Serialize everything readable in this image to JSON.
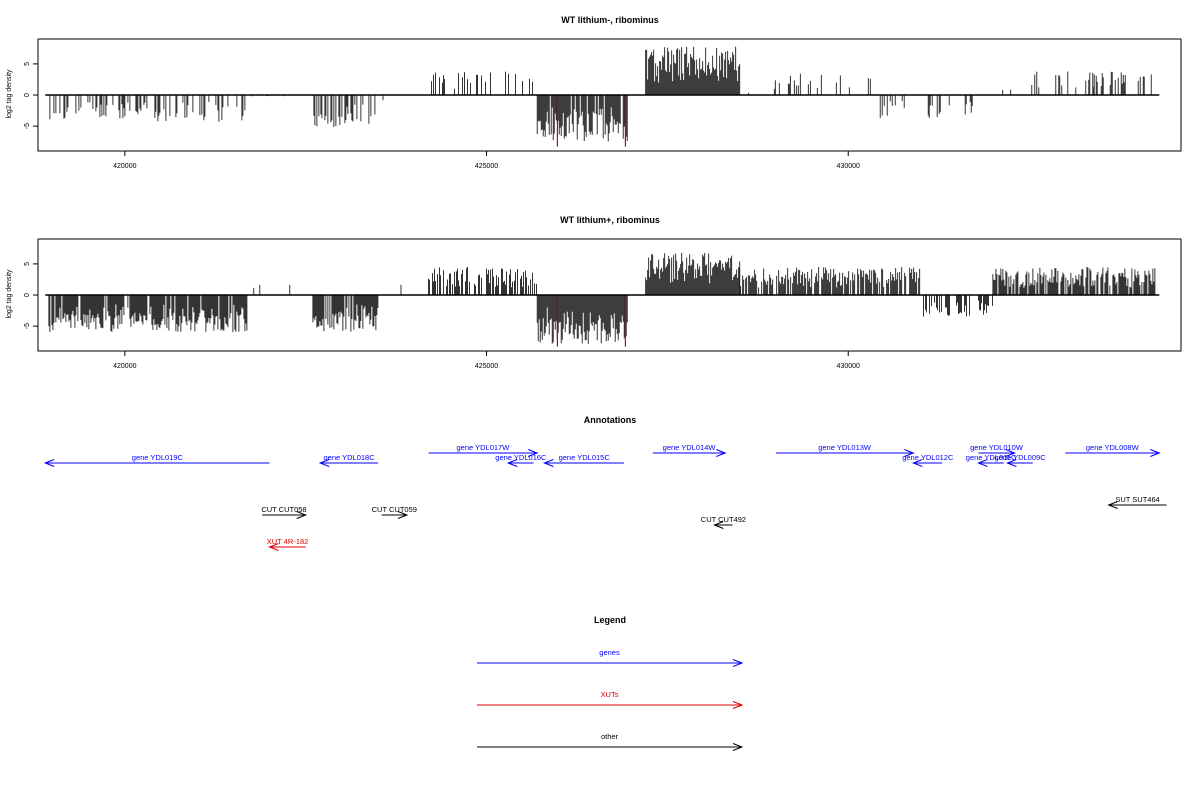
{
  "chart_data": [
    {
      "type": "bar",
      "title": "WT lithium-, ribominus",
      "ylabel": "log2 tag density",
      "xlim": [
        418800,
        434600
      ],
      "ylim": [
        -9,
        9
      ],
      "x_ticks": [
        420000,
        425000,
        430000
      ],
      "y_ticks": [
        -5,
        0,
        5
      ],
      "x_tick_labels": [
        "420000",
        "425000",
        "430000"
      ],
      "y_tick_labels": [
        "-5",
        "0",
        "5"
      ],
      "baseline_range": [
        418900,
        434300
      ],
      "highlight_color": "#cc0000",
      "highlight_bars": [
        {
          "x": 425980,
          "y": -8.3
        },
        {
          "x": 426920,
          "y": -8.3
        }
      ],
      "density_regions": [
        {
          "start": 418950,
          "end": 421700,
          "sign": -1,
          "max": 4.3,
          "density": 0.35
        },
        {
          "start": 421700,
          "end": 422600,
          "sign": -1,
          "max": 0.3,
          "density": 0.03
        },
        {
          "start": 422600,
          "end": 423500,
          "sign": -1,
          "max": 5.2,
          "density": 0.45
        },
        {
          "start": 423500,
          "end": 424200,
          "sign": -1,
          "max": 1.5,
          "density": 0.03
        },
        {
          "start": 424200,
          "end": 425700,
          "sign": 1,
          "max": 3.8,
          "density": 0.2
        },
        {
          "start": 425700,
          "end": 426950,
          "sign": -1,
          "max": 7.5,
          "density": 0.85
        },
        {
          "start": 427200,
          "end": 428500,
          "sign": 1,
          "max": 7.8,
          "density": 1.0
        },
        {
          "start": 428500,
          "end": 428950,
          "sign": 1,
          "max": 0.8,
          "density": 0.05
        },
        {
          "start": 428950,
          "end": 430400,
          "sign": 1,
          "max": 3.5,
          "density": 0.2
        },
        {
          "start": 430400,
          "end": 431900,
          "sign": -1,
          "max": 3.8,
          "density": 0.18
        },
        {
          "start": 431900,
          "end": 432400,
          "sign": 1,
          "max": 1.2,
          "density": 0.04
        },
        {
          "start": 432400,
          "end": 433400,
          "sign": 1,
          "max": 4.0,
          "density": 0.25
        },
        {
          "start": 433400,
          "end": 434250,
          "sign": 1,
          "max": 4.0,
          "density": 0.3
        }
      ]
    },
    {
      "type": "bar",
      "title": "WT lithium+, ribominus",
      "ylabel": "log2 tag density",
      "xlim": [
        418800,
        434600
      ],
      "ylim": [
        -9,
        9
      ],
      "x_ticks": [
        420000,
        425000,
        430000
      ],
      "y_ticks": [
        -5,
        0,
        5
      ],
      "x_tick_labels": [
        "420000",
        "425000",
        "430000"
      ],
      "y_tick_labels": [
        "-5",
        "0",
        "5"
      ],
      "baseline_range": [
        418900,
        434300
      ],
      "highlight_color": "#cc0000",
      "highlight_bars": [
        {
          "x": 425980,
          "y": -8.3
        },
        {
          "x": 426920,
          "y": -8.3
        }
      ],
      "density_regions": [
        {
          "start": 418950,
          "end": 421700,
          "sign": -1,
          "max": 6.0,
          "density": 0.9
        },
        {
          "start": 421700,
          "end": 422600,
          "sign": 1,
          "max": 1.8,
          "density": 0.04
        },
        {
          "start": 422600,
          "end": 423500,
          "sign": -1,
          "max": 6.0,
          "density": 0.9
        },
        {
          "start": 423500,
          "end": 424200,
          "sign": 1,
          "max": 1.8,
          "density": 0.05
        },
        {
          "start": 424200,
          "end": 425700,
          "sign": 1,
          "max": 4.5,
          "density": 0.6
        },
        {
          "start": 425700,
          "end": 426950,
          "sign": -1,
          "max": 8.0,
          "density": 1.0
        },
        {
          "start": 427200,
          "end": 428500,
          "sign": 1,
          "max": 6.8,
          "density": 1.0
        },
        {
          "start": 428500,
          "end": 431000,
          "sign": 1,
          "max": 4.5,
          "density": 0.8
        },
        {
          "start": 431000,
          "end": 432000,
          "sign": -1,
          "max": 3.5,
          "density": 0.5
        },
        {
          "start": 432000,
          "end": 434250,
          "sign": 1,
          "max": 4.5,
          "density": 0.8
        }
      ]
    }
  ],
  "annotations": {
    "title": "Annotations",
    "xlim": [
      418800,
      434600
    ],
    "features": [
      {
        "label": "gene YDL019C",
        "start": 418900,
        "end": 422000,
        "strand": "-",
        "color": "#0000ff",
        "row": 1
      },
      {
        "label": "gene YDL018C",
        "start": 422700,
        "end": 423500,
        "strand": "-",
        "color": "#0000ff",
        "row": 1
      },
      {
        "label": "gene YDL017W",
        "start": 424200,
        "end": 425700,
        "strand": "+",
        "color": "#0000ff",
        "row": 0
      },
      {
        "label": "gene YDL016C",
        "start": 425300,
        "end": 425650,
        "strand": "-",
        "color": "#0000ff",
        "row": 1
      },
      {
        "label": "gene YDL015C",
        "start": 425800,
        "end": 426900,
        "strand": "-",
        "color": "#0000ff",
        "row": 1
      },
      {
        "label": "gene YDL014W",
        "start": 427300,
        "end": 428300,
        "strand": "+",
        "color": "#0000ff",
        "row": 0
      },
      {
        "label": "gene YDL013W",
        "start": 429000,
        "end": 430900,
        "strand": "+",
        "color": "#0000ff",
        "row": 0
      },
      {
        "label": "gene YDL012C",
        "start": 430900,
        "end": 431300,
        "strand": "-",
        "color": "#0000ff",
        "row": 1
      },
      {
        "label": "gene YDL010W",
        "start": 431800,
        "end": 432300,
        "strand": "+",
        "color": "#0000ff",
        "row": 0
      },
      {
        "label": "gene YDL011C",
        "start": 431800,
        "end": 432150,
        "strand": "-",
        "color": "#0000ff",
        "row": 1
      },
      {
        "label": "gene YDL009C",
        "start": 432200,
        "end": 432550,
        "strand": "-",
        "color": "#0000ff",
        "row": 1
      },
      {
        "label": "gene YDL008W",
        "start": 433000,
        "end": 434300,
        "strand": "+",
        "color": "#0000ff",
        "row": 0
      },
      {
        "label": "CUT CUT058",
        "start": 421900,
        "end": 422500,
        "strand": "+",
        "color": "#000000",
        "row": 3
      },
      {
        "label": "CUT CUT059",
        "start": 423550,
        "end": 423900,
        "strand": "+",
        "color": "#000000",
        "row": 3
      },
      {
        "label": "CUT CUT492",
        "start": 428150,
        "end": 428400,
        "strand": "-",
        "color": "#000000",
        "row": 4
      },
      {
        "label": "SUT SUT464",
        "start": 433600,
        "end": 434400,
        "strand": "-",
        "color": "#000000",
        "row": 2
      },
      {
        "label": "XUT 4R-182",
        "start": 422000,
        "end": 422500,
        "strand": "-",
        "color": "#dd0000",
        "row": 5
      }
    ]
  },
  "legend": {
    "title": "Legend",
    "entries": [
      {
        "label": "genes",
        "color": "#0000ff"
      },
      {
        "label": "XUTs",
        "color": "#dd0000"
      },
      {
        "label": "other",
        "color": "#000000"
      }
    ]
  }
}
